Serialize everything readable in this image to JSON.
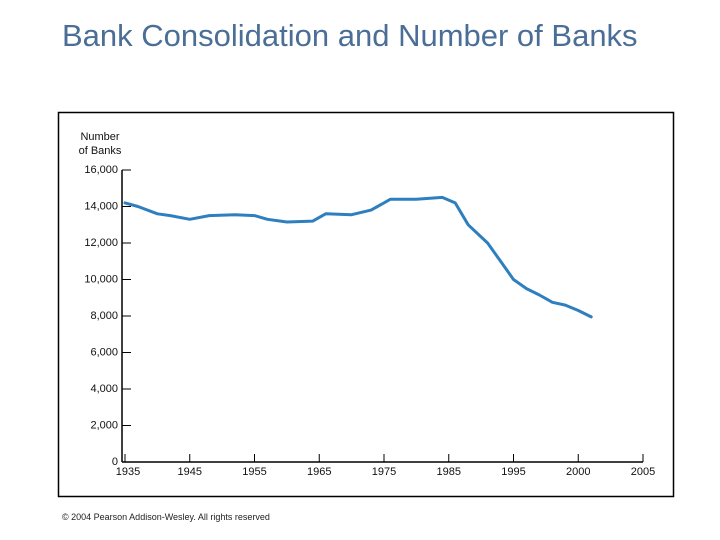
{
  "chart_data": {
    "type": "line",
    "title": "Bank Consolidation and Number of Banks",
    "ylabel": [
      "Number",
      "of Banks"
    ],
    "footer": "© 2004 Pearson Addison-Wesley. All rights reserved",
    "x": [
      1935,
      1937,
      1940,
      1942,
      1945,
      1948,
      1952,
      1955,
      1957,
      1960,
      1964,
      1966,
      1970,
      1973,
      1976,
      1980,
      1984,
      1986,
      1988,
      1991,
      1993,
      1995,
      1996,
      1997,
      1998,
      1999,
      2000,
      2001
    ],
    "series": [
      {
        "name": "Number of Banks",
        "color": "#2e7fbf",
        "values": [
          14200,
          14000,
          13600,
          13500,
          13300,
          13500,
          13550,
          13500,
          13300,
          13150,
          13200,
          13600,
          13550,
          13800,
          14400,
          14400,
          14500,
          14200,
          13000,
          12000,
          11000,
          10000,
          9500,
          9150,
          8750,
          8600,
          8300,
          7950
        ]
      }
    ],
    "xlim": [
      1935,
      2005
    ],
    "xticks": [
      1935,
      1945,
      1955,
      1965,
      1975,
      1985,
      1995,
      2000,
      2005
    ],
    "ylim": [
      0,
      16000
    ],
    "yticks": [
      0,
      {
        "value": 2000,
        "label": "2,000"
      },
      {
        "value": 4000,
        "label": "4,000"
      },
      {
        "value": 6000,
        "label": "6,000"
      },
      {
        "value": 8000,
        "label": "8,000"
      },
      {
        "value": 10000,
        "label": "10,000"
      },
      {
        "value": 12000,
        "label": "12,000"
      },
      {
        "value": 14000,
        "label": "14,000"
      },
      {
        "value": 16000,
        "label": "16,000"
      }
    ],
    "grid": false
  }
}
